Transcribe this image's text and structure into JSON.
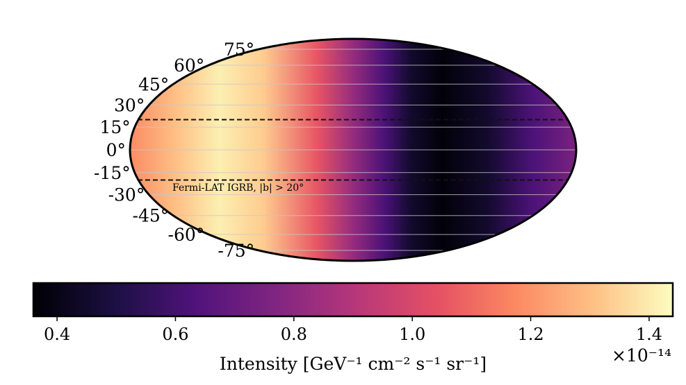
{
  "chart_data": {
    "type": "heatmap",
    "projection": "mollweide",
    "colormap": "magma",
    "annotation": "Fermi-LAT IGRB, |b| > 20°",
    "latitude_ticks": [
      {
        "value": 75,
        "label": "75°"
      },
      {
        "value": 60,
        "label": "60°"
      },
      {
        "value": 45,
        "label": "45°"
      },
      {
        "value": 30,
        "label": "30°"
      },
      {
        "value": 15,
        "label": "15°"
      },
      {
        "value": 0,
        "label": "0°"
      },
      {
        "value": -15,
        "label": "-15°"
      },
      {
        "value": -30,
        "label": "-30°"
      },
      {
        "value": -45,
        "label": "-45°"
      },
      {
        "value": -60,
        "label": "-60°"
      },
      {
        "value": -75,
        "label": "-75°"
      }
    ],
    "masked_band_deg": [
      -20,
      20
    ],
    "intensity_profile": {
      "description": "Intensity vs horizontal map position (0 = left edge, 1 = right edge), roughly constant in latitude",
      "x": [
        0.0,
        0.1,
        0.2,
        0.3,
        0.42,
        0.5,
        0.57,
        0.63,
        0.7,
        0.8,
        0.9,
        1.0
      ],
      "values": [
        1.18,
        1.3,
        1.41,
        1.33,
        1.05,
        0.82,
        0.62,
        0.45,
        0.37,
        0.45,
        0.62,
        0.75
      ]
    },
    "colorbar": {
      "min": 0.36,
      "max": 1.44,
      "ticks": [
        {
          "value": 0.4,
          "label": "0.4"
        },
        {
          "value": 0.6,
          "label": "0.6"
        },
        {
          "value": 0.8,
          "label": "0.8"
        },
        {
          "value": 1.0,
          "label": "1.0"
        },
        {
          "value": 1.2,
          "label": "1.2"
        },
        {
          "value": 1.4,
          "label": "1.4"
        }
      ],
      "label": "Intensity [GeV⁻¹ cm⁻² s⁻¹ sr⁻¹]",
      "offset_text": "×10⁻¹⁴"
    }
  }
}
